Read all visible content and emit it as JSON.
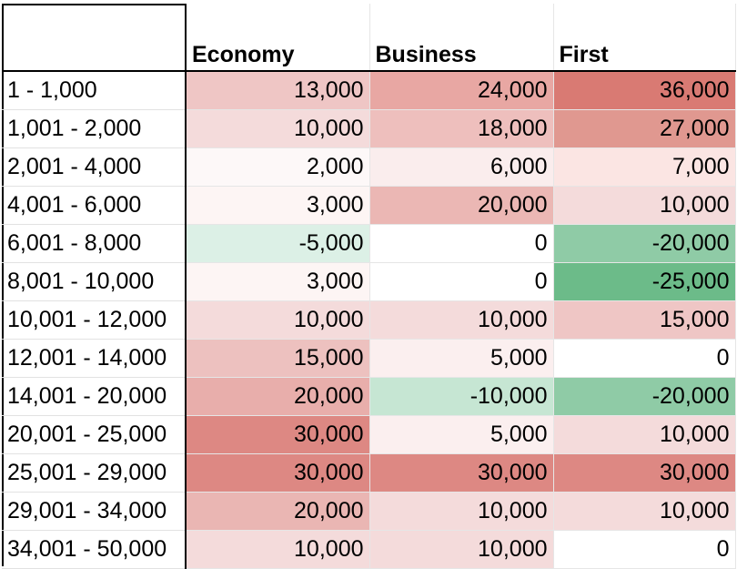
{
  "table": {
    "headers": [
      "",
      "Economy",
      "Business",
      "First"
    ],
    "rows": [
      {
        "label": "1 - 1,000",
        "values": [
          "13,000",
          "24,000",
          "36,000"
        ],
        "colors": [
          "#efc6c5",
          "#e8a7a3",
          "#d97a73"
        ]
      },
      {
        "label": "1,001 - 2,000",
        "values": [
          "10,000",
          "18,000",
          "27,000"
        ],
        "colors": [
          "#f4dbdb",
          "#eebfbd",
          "#e09890"
        ]
      },
      {
        "label": "2,001 - 4,000",
        "values": [
          "2,000",
          "6,000",
          "7,000"
        ],
        "colors": [
          "#fdf8f8",
          "#faeded",
          "#fbe5e3"
        ]
      },
      {
        "label": "4,001 - 6,000",
        "values": [
          "3,000",
          "20,000",
          "10,000"
        ],
        "colors": [
          "#fdf5f4",
          "#ebb7b4",
          "#f4dbdb"
        ]
      },
      {
        "label": "6,001 - 8,000",
        "values": [
          "-5,000",
          "0",
          "-20,000"
        ],
        "colors": [
          "#dcf0e6",
          "#ffffff",
          "#8fcba6"
        ]
      },
      {
        "label": "8,001 - 10,000",
        "values": [
          "3,000",
          "0",
          "-25,000"
        ],
        "colors": [
          "#fdf5f4",
          "#ffffff",
          "#6cbb89"
        ]
      },
      {
        "label": "10,001 - 12,000",
        "values": [
          "10,000",
          "10,000",
          "15,000"
        ],
        "colors": [
          "#f4dbdb",
          "#f4dbdb",
          "#efc6c5"
        ]
      },
      {
        "label": "12,001 - 14,000",
        "values": [
          "15,000",
          "5,000",
          "0"
        ],
        "colors": [
          "#edc1bf",
          "#fbefef",
          "#ffffff"
        ]
      },
      {
        "label": "14,001 - 20,000",
        "values": [
          "20,000",
          "-10,000",
          "-20,000"
        ],
        "colors": [
          "#e8aeab",
          "#c6e6d3",
          "#8fcba6"
        ]
      },
      {
        "label": "20,001 - 25,000",
        "values": [
          "30,000",
          "5,000",
          "10,000"
        ],
        "colors": [
          "#dd8883",
          "#fbefef",
          "#f4dbdb"
        ]
      },
      {
        "label": "25,001 - 29,000",
        "values": [
          "30,000",
          "30,000",
          "30,000"
        ],
        "colors": [
          "#dd8883",
          "#dd8883",
          "#dd8883"
        ]
      },
      {
        "label": "29,001 - 34,000",
        "values": [
          "20,000",
          "10,000",
          "10,000"
        ],
        "colors": [
          "#eab6b3",
          "#f4dbdb",
          "#f4dbdb"
        ]
      },
      {
        "label": "34,001 - 50,000",
        "values": [
          "10,000",
          "10,000",
          "0"
        ],
        "colors": [
          "#f4dbdb",
          "#f4dbdb",
          "#ffffff"
        ]
      }
    ]
  }
}
